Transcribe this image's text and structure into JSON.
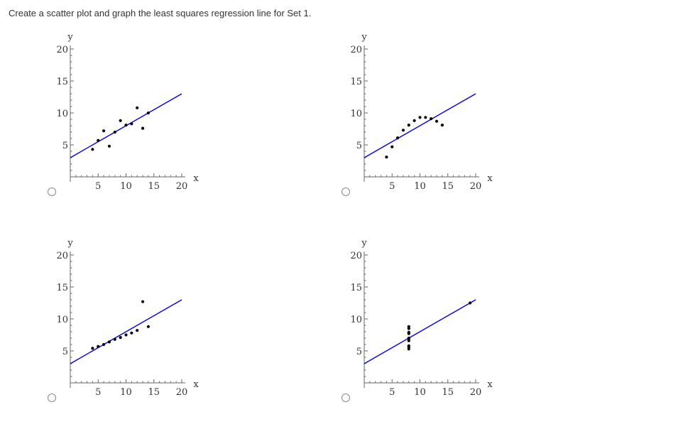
{
  "question": "Create a scatter plot and graph the least squares regression line for Set 1.",
  "chart_data": [
    {
      "type": "scatter",
      "xlabel": "x",
      "ylabel": "y",
      "xlim": [
        0,
        20
      ],
      "ylim": [
        0,
        20
      ],
      "xticks": [
        "5",
        "10",
        "15",
        "20"
      ],
      "yticks": [
        "5",
        "10",
        "15",
        "20"
      ],
      "points": [
        [
          4,
          4.3
        ],
        [
          5,
          5.7
        ],
        [
          6,
          7.2
        ],
        [
          7,
          4.8
        ],
        [
          8,
          7
        ],
        [
          9,
          8.8
        ],
        [
          10,
          8.1
        ],
        [
          11,
          8.3
        ],
        [
          12,
          10.8
        ],
        [
          13,
          7.6
        ],
        [
          14,
          10
        ]
      ],
      "line": [
        [
          0,
          3
        ],
        [
          20,
          13
        ]
      ],
      "colors": {
        "line": "#0000ee",
        "points": "#000000"
      }
    },
    {
      "type": "scatter",
      "xlabel": "x",
      "ylabel": "y",
      "xlim": [
        0,
        20
      ],
      "ylim": [
        0,
        20
      ],
      "xticks": [
        "5",
        "10",
        "15",
        "20"
      ],
      "yticks": [
        "5",
        "10",
        "15",
        "20"
      ],
      "points": [
        [
          4,
          3.1
        ],
        [
          5,
          4.7
        ],
        [
          6,
          6.1
        ],
        [
          7,
          7.3
        ],
        [
          8,
          8.1
        ],
        [
          9,
          8.8
        ],
        [
          10,
          9.3
        ],
        [
          11,
          9.3
        ],
        [
          12,
          9.1
        ],
        [
          13,
          8.7
        ],
        [
          14,
          8.1
        ]
      ],
      "line": [
        [
          0,
          3
        ],
        [
          20,
          13
        ]
      ],
      "colors": {
        "line": "#0000ee",
        "points": "#000000"
      }
    },
    {
      "type": "scatter",
      "xlabel": "x",
      "ylabel": "y",
      "xlim": [
        0,
        20
      ],
      "ylim": [
        0,
        20
      ],
      "xticks": [
        "5",
        "10",
        "15",
        "20"
      ],
      "yticks": [
        "5",
        "10",
        "15",
        "20"
      ],
      "points": [
        [
          4,
          5.4
        ],
        [
          5,
          5.7
        ],
        [
          6,
          6
        ],
        [
          7,
          6.4
        ],
        [
          8,
          6.8
        ],
        [
          9,
          7.1
        ],
        [
          10,
          7.5
        ],
        [
          11,
          7.8
        ],
        [
          12,
          8.2
        ],
        [
          13,
          12.7
        ],
        [
          14,
          8.8
        ]
      ],
      "line": [
        [
          0,
          3
        ],
        [
          20,
          13
        ]
      ],
      "colors": {
        "line": "#0000ee",
        "points": "#000000"
      }
    },
    {
      "type": "scatter",
      "xlabel": "x",
      "ylabel": "y",
      "xlim": [
        0,
        20
      ],
      "ylim": [
        0,
        20
      ],
      "xticks": [
        "5",
        "10",
        "15",
        "20"
      ],
      "yticks": [
        "5",
        "10",
        "15",
        "20"
      ],
      "points": [
        [
          8,
          5.3
        ],
        [
          8,
          5.8
        ],
        [
          8,
          6.6
        ],
        [
          8,
          7
        ],
        [
          8,
          7.7
        ],
        [
          8,
          8.5
        ],
        [
          8,
          8.8
        ],
        [
          8,
          5.6
        ],
        [
          8,
          6.9
        ],
        [
          8,
          7.9
        ],
        [
          19,
          12.5
        ]
      ],
      "line": [
        [
          0,
          3
        ],
        [
          20,
          13
        ]
      ],
      "colors": {
        "line": "#0000ee",
        "points": "#000000"
      }
    }
  ]
}
